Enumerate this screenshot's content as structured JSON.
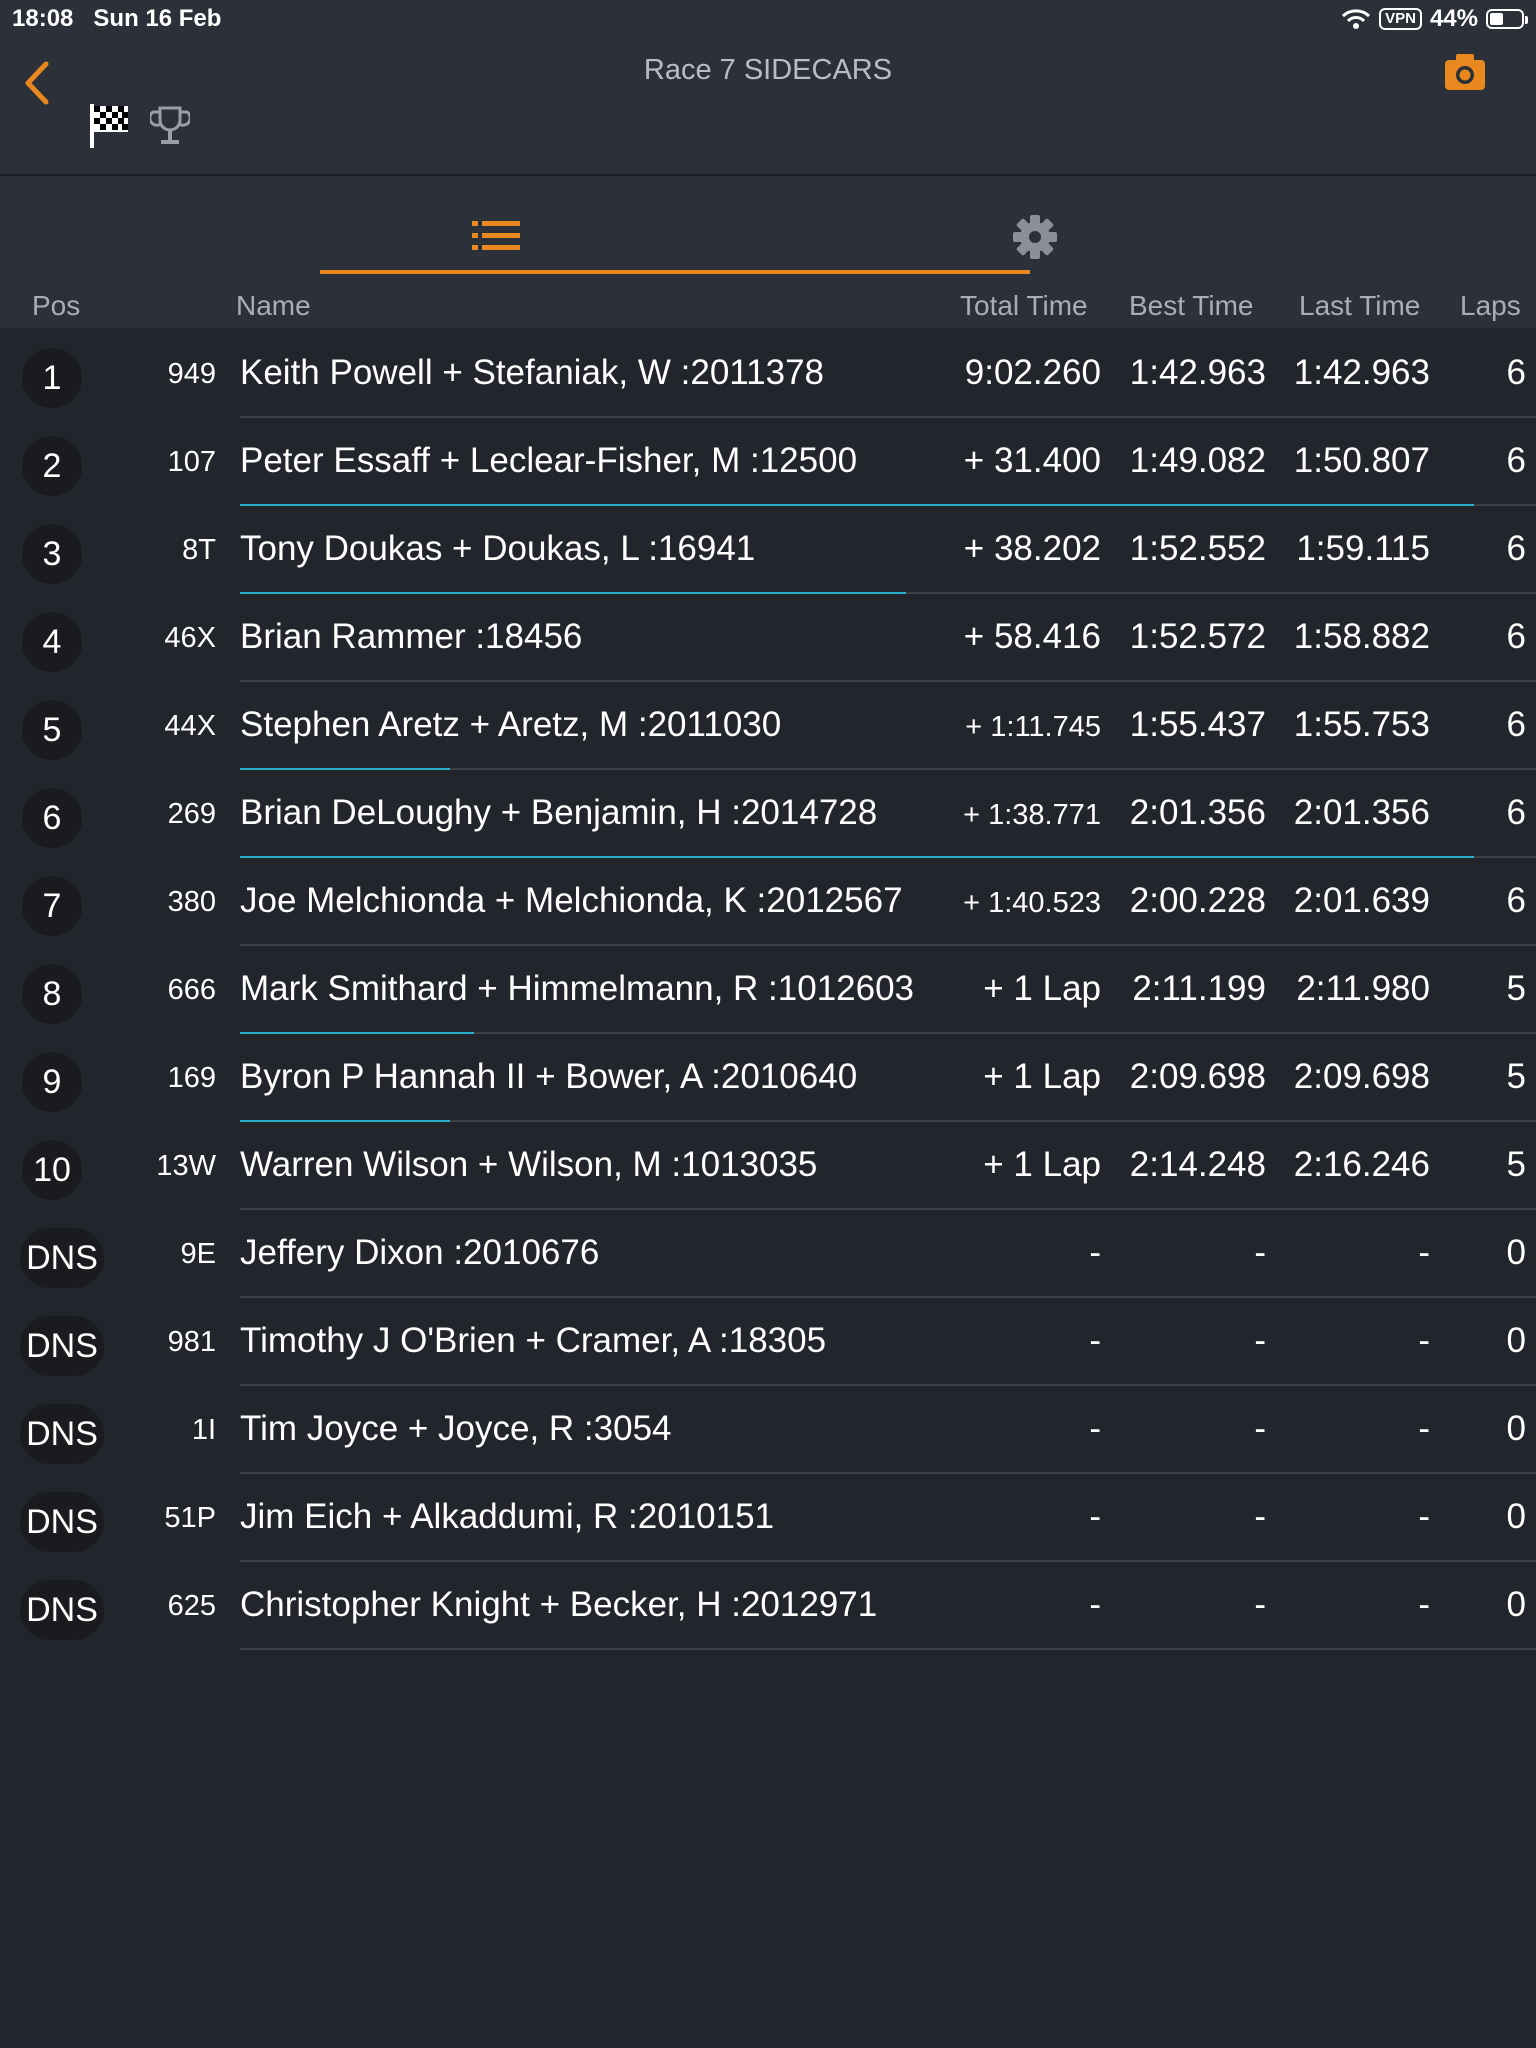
{
  "status": {
    "time": "18:08",
    "date": "Sun 16 Feb",
    "vpn": "VPN",
    "battery": "44%",
    "battery_level": 0.44
  },
  "header": {
    "title": "Race 7  SIDECARS",
    "accent_color": "#e8881e"
  },
  "tabs": [
    {
      "icon": "list-icon",
      "selected": true
    },
    {
      "icon": "gear-icon",
      "selected": false
    }
  ],
  "columns": {
    "pos": "Pos",
    "name": "Name",
    "total": "Total Time",
    "best": "Best Time",
    "last": "Last Time",
    "laps": "Laps"
  },
  "results": [
    {
      "pos": "1",
      "number": "949",
      "name": "Keith Powell + Stefaniak, W :2011378",
      "total": "9:02.260",
      "best": "1:42.963",
      "last": "1:42.963",
      "laps": "6",
      "progress": 0
    },
    {
      "pos": "2",
      "number": "107",
      "name": "Peter Essaff + Leclear-Fisher, M :12500",
      "total": "+ 31.400",
      "best": "1:49.082",
      "last": "1:50.807",
      "laps": "6",
      "progress": 1.0
    },
    {
      "pos": "3",
      "number": "8T",
      "name": "Tony Doukas + Doukas, L :16941",
      "total": "+ 38.202",
      "best": "1:52.552",
      "last": "1:59.115",
      "laps": "6",
      "progress": 0.54
    },
    {
      "pos": "4",
      "number": "46X",
      "name": "Brian Rammer :18456",
      "total": "+ 58.416",
      "best": "1:52.572",
      "last": "1:58.882",
      "laps": "6",
      "progress": 0
    },
    {
      "pos": "5",
      "number": "44X",
      "name": "Stephen Aretz + Aretz, M :2011030",
      "total": "+ 1:11.745",
      "best": "1:55.437",
      "last": "1:55.753",
      "laps": "6",
      "progress": 0.17
    },
    {
      "pos": "6",
      "number": "269",
      "name": "Brian DeLoughy + Benjamin, H :2014728",
      "total": "+ 1:38.771",
      "best": "2:01.356",
      "last": "2:01.356",
      "laps": "6",
      "progress": 1.0
    },
    {
      "pos": "7",
      "number": "380",
      "name": "Joe Melchionda + Melchionda, K :2012567",
      "total": "+ 1:40.523",
      "best": "2:00.228",
      "last": "2:01.639",
      "laps": "6",
      "progress": 0
    },
    {
      "pos": "8",
      "number": "666",
      "name": "Mark Smithard + Himmelmann, R :1012603",
      "total": "+ 1 Lap",
      "best": "2:11.199",
      "last": "2:11.980",
      "laps": "5",
      "progress": 0.19
    },
    {
      "pos": "9",
      "number": "169",
      "name": "Byron P Hannah II + Bower, A :2010640",
      "total": "+ 1 Lap",
      "best": "2:09.698",
      "last": "2:09.698",
      "laps": "5",
      "progress": 0.17
    },
    {
      "pos": "10",
      "number": "13W",
      "name": "Warren Wilson + Wilson, M :1013035",
      "total": "+ 1 Lap",
      "best": "2:14.248",
      "last": "2:16.246",
      "laps": "5",
      "progress": 0
    },
    {
      "pos": "DNS",
      "number": "9E",
      "name": "Jeffery Dixon :2010676",
      "total": "-",
      "best": "-",
      "last": "-",
      "laps": "0",
      "progress": 0
    },
    {
      "pos": "DNS",
      "number": "981",
      "name": "Timothy J O'Brien + Cramer, A :18305",
      "total": "-",
      "best": "-",
      "last": "-",
      "laps": "0",
      "progress": 0
    },
    {
      "pos": "DNS",
      "number": "1I",
      "name": "Tim Joyce + Joyce, R :3054",
      "total": "-",
      "best": "-",
      "last": "-",
      "laps": "0",
      "progress": 0
    },
    {
      "pos": "DNS",
      "number": "51P",
      "name": "Jim Eich + Alkaddumi, R :2010151",
      "total": "-",
      "best": "-",
      "last": "-",
      "laps": "0",
      "progress": 0
    },
    {
      "pos": "DNS",
      "number": "625",
      "name": "Christopher Knight + Becker, H :2012971",
      "total": "-",
      "best": "-",
      "last": "-",
      "laps": "0",
      "progress": 0
    }
  ]
}
